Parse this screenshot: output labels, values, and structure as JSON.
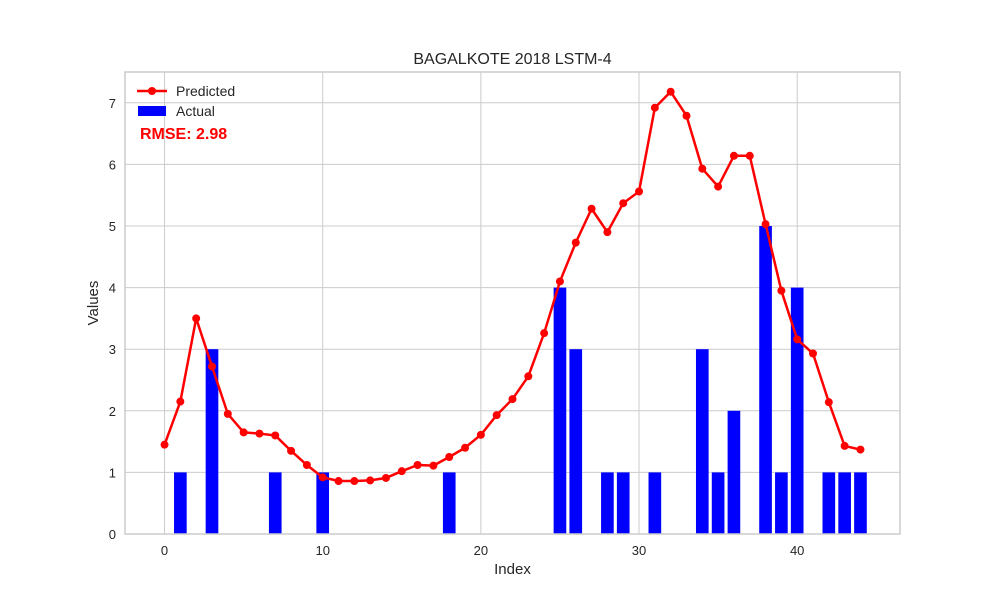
{
  "chart_data": {
    "type": "bar+line",
    "title": "BAGALKOTE 2018 LSTM-4",
    "xlabel": "Index",
    "ylabel": "Values",
    "xlim": [
      -2.5,
      46.5
    ],
    "ylim": [
      0,
      7.5
    ],
    "xticks": [
      0,
      10,
      20,
      30,
      40
    ],
    "yticks": [
      0,
      1,
      2,
      3,
      4,
      5,
      6,
      7
    ],
    "grid": true,
    "legend_position": "upper left",
    "annotation": "RMSE: 2.98",
    "colors": {
      "predicted": "#ff0000",
      "actual": "#0000ff",
      "grid": "#cccccc",
      "frame": "#cccccc"
    },
    "series": [
      {
        "name": "Predicted",
        "type": "line",
        "x": [
          0,
          1,
          2,
          3,
          4,
          5,
          6,
          7,
          8,
          9,
          10,
          11,
          12,
          13,
          14,
          15,
          16,
          17,
          18,
          19,
          20,
          21,
          22,
          23,
          24,
          25,
          26,
          27,
          28,
          29,
          30,
          31,
          32,
          33,
          34,
          35,
          36,
          37,
          38,
          39,
          40,
          41,
          42,
          43,
          44
        ],
        "values": [
          1.45,
          2.15,
          3.5,
          2.72,
          1.95,
          1.65,
          1.63,
          1.6,
          1.35,
          1.12,
          0.92,
          0.86,
          0.86,
          0.87,
          0.91,
          1.02,
          1.12,
          1.11,
          1.25,
          1.4,
          1.61,
          1.93,
          2.19,
          2.56,
          3.26,
          4.1,
          4.73,
          5.28,
          4.9,
          5.37,
          5.56,
          6.92,
          7.18,
          6.79,
          5.93,
          5.64,
          6.14,
          6.14,
          5.03,
          3.95,
          3.16,
          2.93,
          2.14,
          1.43,
          1.37
        ]
      },
      {
        "name": "Actual",
        "type": "bar",
        "x": [
          0,
          1,
          2,
          3,
          4,
          5,
          6,
          7,
          8,
          9,
          10,
          11,
          12,
          13,
          14,
          15,
          16,
          17,
          18,
          19,
          20,
          21,
          22,
          23,
          24,
          25,
          26,
          27,
          28,
          29,
          30,
          31,
          32,
          33,
          34,
          35,
          36,
          37,
          38,
          39,
          40,
          41,
          42,
          43,
          44
        ],
        "values": [
          0,
          1,
          0,
          3,
          0,
          0,
          0,
          1,
          0,
          0,
          1,
          0,
          0,
          0,
          0,
          0,
          0,
          0,
          1,
          0,
          0,
          0,
          0,
          0,
          0,
          4,
          3,
          0,
          1,
          1,
          0,
          1,
          0,
          0,
          3,
          1,
          2,
          0,
          5,
          1,
          4,
          0,
          1,
          1,
          1
        ]
      }
    ]
  }
}
